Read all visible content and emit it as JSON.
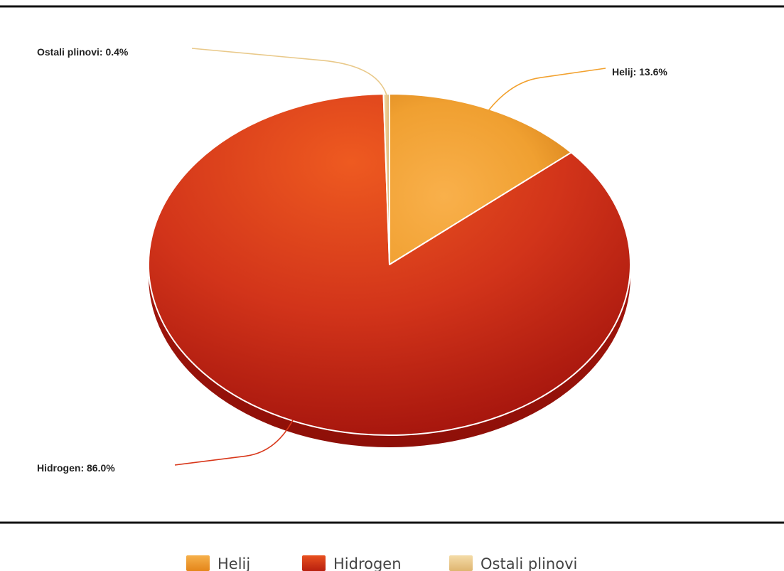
{
  "chart_data": {
    "type": "pie",
    "title": "",
    "slices": [
      {
        "name": "Helij",
        "value": 13.6,
        "label": "Helij: 13.6%",
        "color": "#f2a12e"
      },
      {
        "name": "Hidrogen",
        "value": 86.0,
        "label": "Hidrogen: 86.0%",
        "color": "#d8371a"
      },
      {
        "name": "Ostali plinovi",
        "value": 0.4,
        "label": "Ostali plinovi: 0.4%",
        "color": "#e9c98a"
      }
    ],
    "legend_position": "bottom-center",
    "style": "3d"
  },
  "legend": {
    "items": [
      {
        "label": "Helij",
        "color": "#f09a25"
      },
      {
        "label": "Hidrogen",
        "color": "#d5351a"
      },
      {
        "label": "Ostali plinovi",
        "color": "#e9c98a"
      }
    ]
  }
}
